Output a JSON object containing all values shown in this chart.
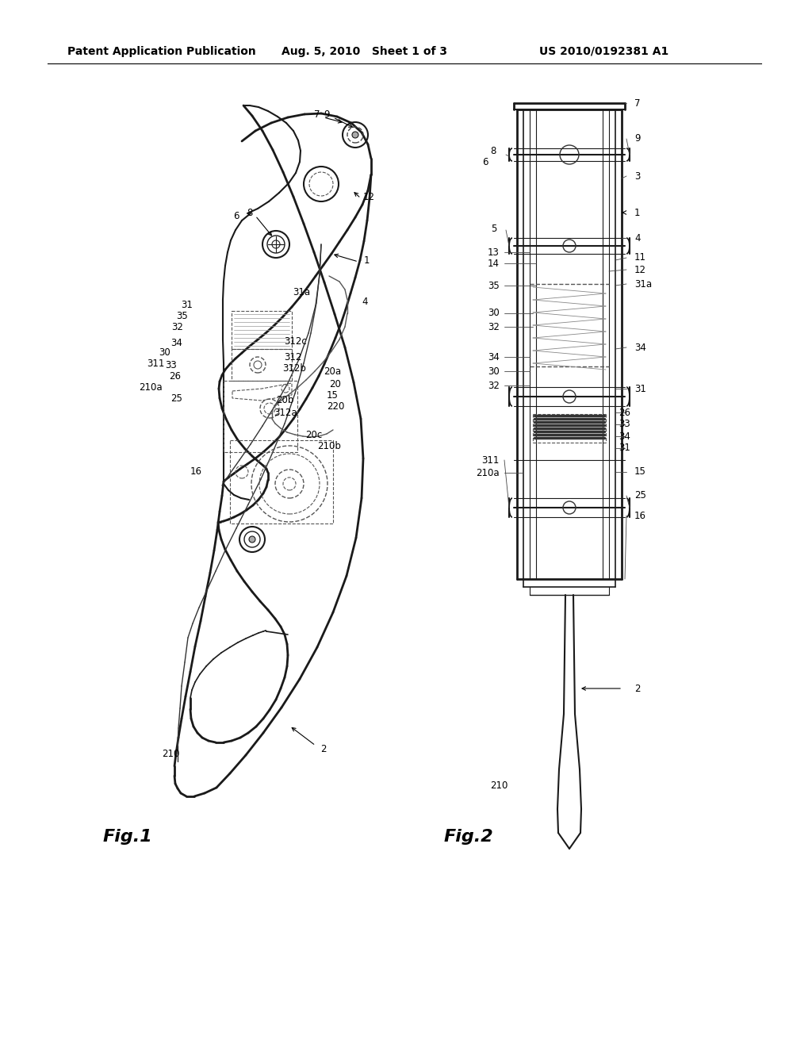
{
  "bg_color": "#ffffff",
  "header_left": "Patent Application Publication",
  "header_mid": "Aug. 5, 2010   Sheet 1 of 3",
  "header_right": "US 2010/0192381 A1",
  "fig1_label": "Fig.1",
  "fig2_label": "Fig.2",
  "header_fontsize": 10,
  "label_fontsize": 8.5,
  "fig_label_fontsize": 16
}
